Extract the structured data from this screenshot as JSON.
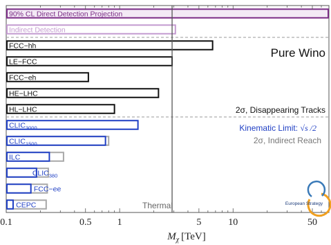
{
  "chart_data": {
    "type": "bar",
    "title": "Pure Wino",
    "xlabel": "M_χ [TeV]",
    "xlabel_main": "M",
    "xlabel_sub": "χ",
    "xlabel_unit": "[TeV]",
    "xscale": "log",
    "xlim": [
      0.1,
      70
    ],
    "ticks": [
      {
        "value": 0.1,
        "label": "0.1"
      },
      {
        "value": 0.5,
        "label": "0.5"
      },
      {
        "value": 1,
        "label": "1"
      },
      {
        "value": 5,
        "label": "5"
      },
      {
        "value": 10,
        "label": "10"
      },
      {
        "value": 50,
        "label": "50"
      }
    ],
    "thermal_line": 2.9,
    "thermal_label": "Thermal",
    "bars": [
      {
        "name": "90% CL Direct Detection Projection",
        "value": 70,
        "color": "#7b2d86",
        "fill": "#f3e9f5",
        "group": "top"
      },
      {
        "name": "Indirect Detection",
        "value": 3.1,
        "color": "#c49bd0",
        "fill": "#ffffff",
        "group": "top"
      },
      {
        "name": "FCC−hh",
        "value": 6.6,
        "color": "#111111",
        "group": "hadron"
      },
      {
        "name": "LE−FCC",
        "value": 2.9,
        "color": "#111111",
        "group": "hadron"
      },
      {
        "name": "FCC−eh",
        "value": 0.53,
        "color": "#111111",
        "group": "hadron"
      },
      {
        "name": "HE−LHC",
        "value": 2.2,
        "color": "#111111",
        "group": "hadron"
      },
      {
        "name": "HL−LHC",
        "value": 0.9,
        "color": "#111111",
        "group": "hadron"
      },
      {
        "name": "CLIC",
        "sub": "3000",
        "value": 1.45,
        "indirect": null,
        "color": "#1f3fc4",
        "group": "lepton"
      },
      {
        "name": "CLIC",
        "sub": "1500",
        "value": 0.75,
        "indirect": 0.8,
        "color": "#1f3fc4",
        "group": "lepton"
      },
      {
        "name": "ILC",
        "value": 0.24,
        "indirect": 0.32,
        "color": "#1f3fc4",
        "group": "lepton"
      },
      {
        "name": "CLIC",
        "sub": "380",
        "value": 0.185,
        "indirect": 0.235,
        "color": "#1f3fc4",
        "group": "lepton"
      },
      {
        "name": "FCC−ee",
        "value": 0.165,
        "indirect": 0.23,
        "color": "#1f3fc4",
        "group": "lepton"
      },
      {
        "name": "CEPC",
        "value": 0.115,
        "indirect": 0.225,
        "color": "#1f3fc4",
        "group": "lepton"
      }
    ],
    "annotations": {
      "disappearing": "2σ, Disappearing Tracks",
      "kinematic_prefix": "Kinematic Limit: ",
      "kinematic_math": "√s /2",
      "indirect_reach": "2σ, Indirect Reach"
    },
    "logo_text": "European Strategy",
    "colors": {
      "hadron": "#111111",
      "lepton": "#1f3fc4",
      "indirect_gray": "#a8a8a8",
      "dashed": "#999999"
    }
  }
}
